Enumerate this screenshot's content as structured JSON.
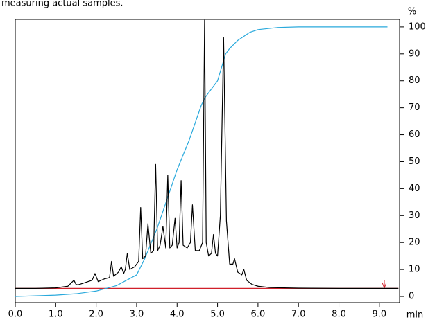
{
  "chart_data": {
    "type": "line",
    "title": "measuring actual samples.",
    "y_label": "%",
    "x_label": "min",
    "xlim": [
      0,
      9.5
    ],
    "ylim": [
      -2.3,
      102.8
    ],
    "xticks": [
      {
        "value": 0,
        "label": "0.0"
      },
      {
        "value": 1,
        "label": "1.0"
      },
      {
        "value": 2,
        "label": "2.0"
      },
      {
        "value": 3,
        "label": "3.0"
      },
      {
        "value": 4,
        "label": "4.0"
      },
      {
        "value": 5,
        "label": "5.0"
      },
      {
        "value": 6,
        "label": "6.0"
      },
      {
        "value": 7,
        "label": "7.0"
      },
      {
        "value": 8,
        "label": "8.0"
      },
      {
        "value": 9,
        "label": "9.0"
      }
    ],
    "yticks": [
      0,
      10,
      20,
      30,
      40,
      50,
      60,
      70,
      80,
      90,
      100
    ],
    "series": [
      {
        "color": "#d0202a",
        "x": [
          0,
          9.47
        ],
        "values": [
          3,
          3
        ]
      },
      {
        "color": "#29a9dc",
        "x": [
          0,
          1,
          1.5,
          2,
          2.5,
          3,
          3.2,
          3.5,
          4,
          4.3,
          4.6,
          4.7,
          5.0,
          5.1,
          5.2,
          5.3,
          5.5,
          5.8,
          6.0,
          6.5,
          7,
          9.2
        ],
        "values": [
          0,
          0.5,
          1,
          2,
          4,
          8,
          14,
          25,
          47,
          58,
          71,
          74,
          80,
          85,
          90,
          92,
          95,
          98,
          99,
          99.8,
          100,
          100
        ]
      },
      {
        "color": "#000000",
        "x": [
          0,
          0.5,
          1.0,
          1.3,
          1.45,
          1.5,
          1.55,
          1.7,
          1.9,
          1.97,
          2.05,
          2.2,
          2.33,
          2.38,
          2.43,
          2.55,
          2.62,
          2.68,
          2.72,
          2.77,
          2.83,
          2.95,
          3.05,
          3.1,
          3.15,
          3.22,
          3.28,
          3.35,
          3.42,
          3.47,
          3.52,
          3.58,
          3.65,
          3.72,
          3.77,
          3.82,
          3.88,
          3.95,
          4.0,
          4.05,
          4.1,
          4.15,
          4.25,
          4.33,
          4.38,
          4.45,
          4.55,
          4.63,
          4.68,
          4.72,
          4.78,
          4.85,
          4.9,
          4.95,
          5.0,
          5.07,
          5.15,
          5.22,
          5.3,
          5.38,
          5.42,
          5.5,
          5.6,
          5.65,
          5.72,
          5.85,
          6.0,
          6.3,
          7.0,
          8.0,
          9.47
        ],
        "values": [
          3,
          3,
          3.2,
          3.8,
          6,
          4.5,
          4.3,
          5,
          6,
          8.5,
          5.5,
          6.5,
          7,
          13,
          7.5,
          9,
          11,
          8.5,
          10,
          16,
          10,
          11,
          13,
          33,
          14,
          15,
          27,
          16,
          17,
          49,
          17,
          19,
          26,
          18,
          45,
          18,
          19,
          29,
          18,
          20,
          43,
          19,
          18,
          20,
          34,
          17,
          17,
          20,
          102.5,
          20,
          15,
          16,
          23,
          16,
          15,
          30,
          96,
          28,
          12,
          12,
          14,
          9,
          8,
          10,
          6,
          4.5,
          3.8,
          3.3,
          3.1,
          3,
          3
        ]
      }
    ]
  }
}
